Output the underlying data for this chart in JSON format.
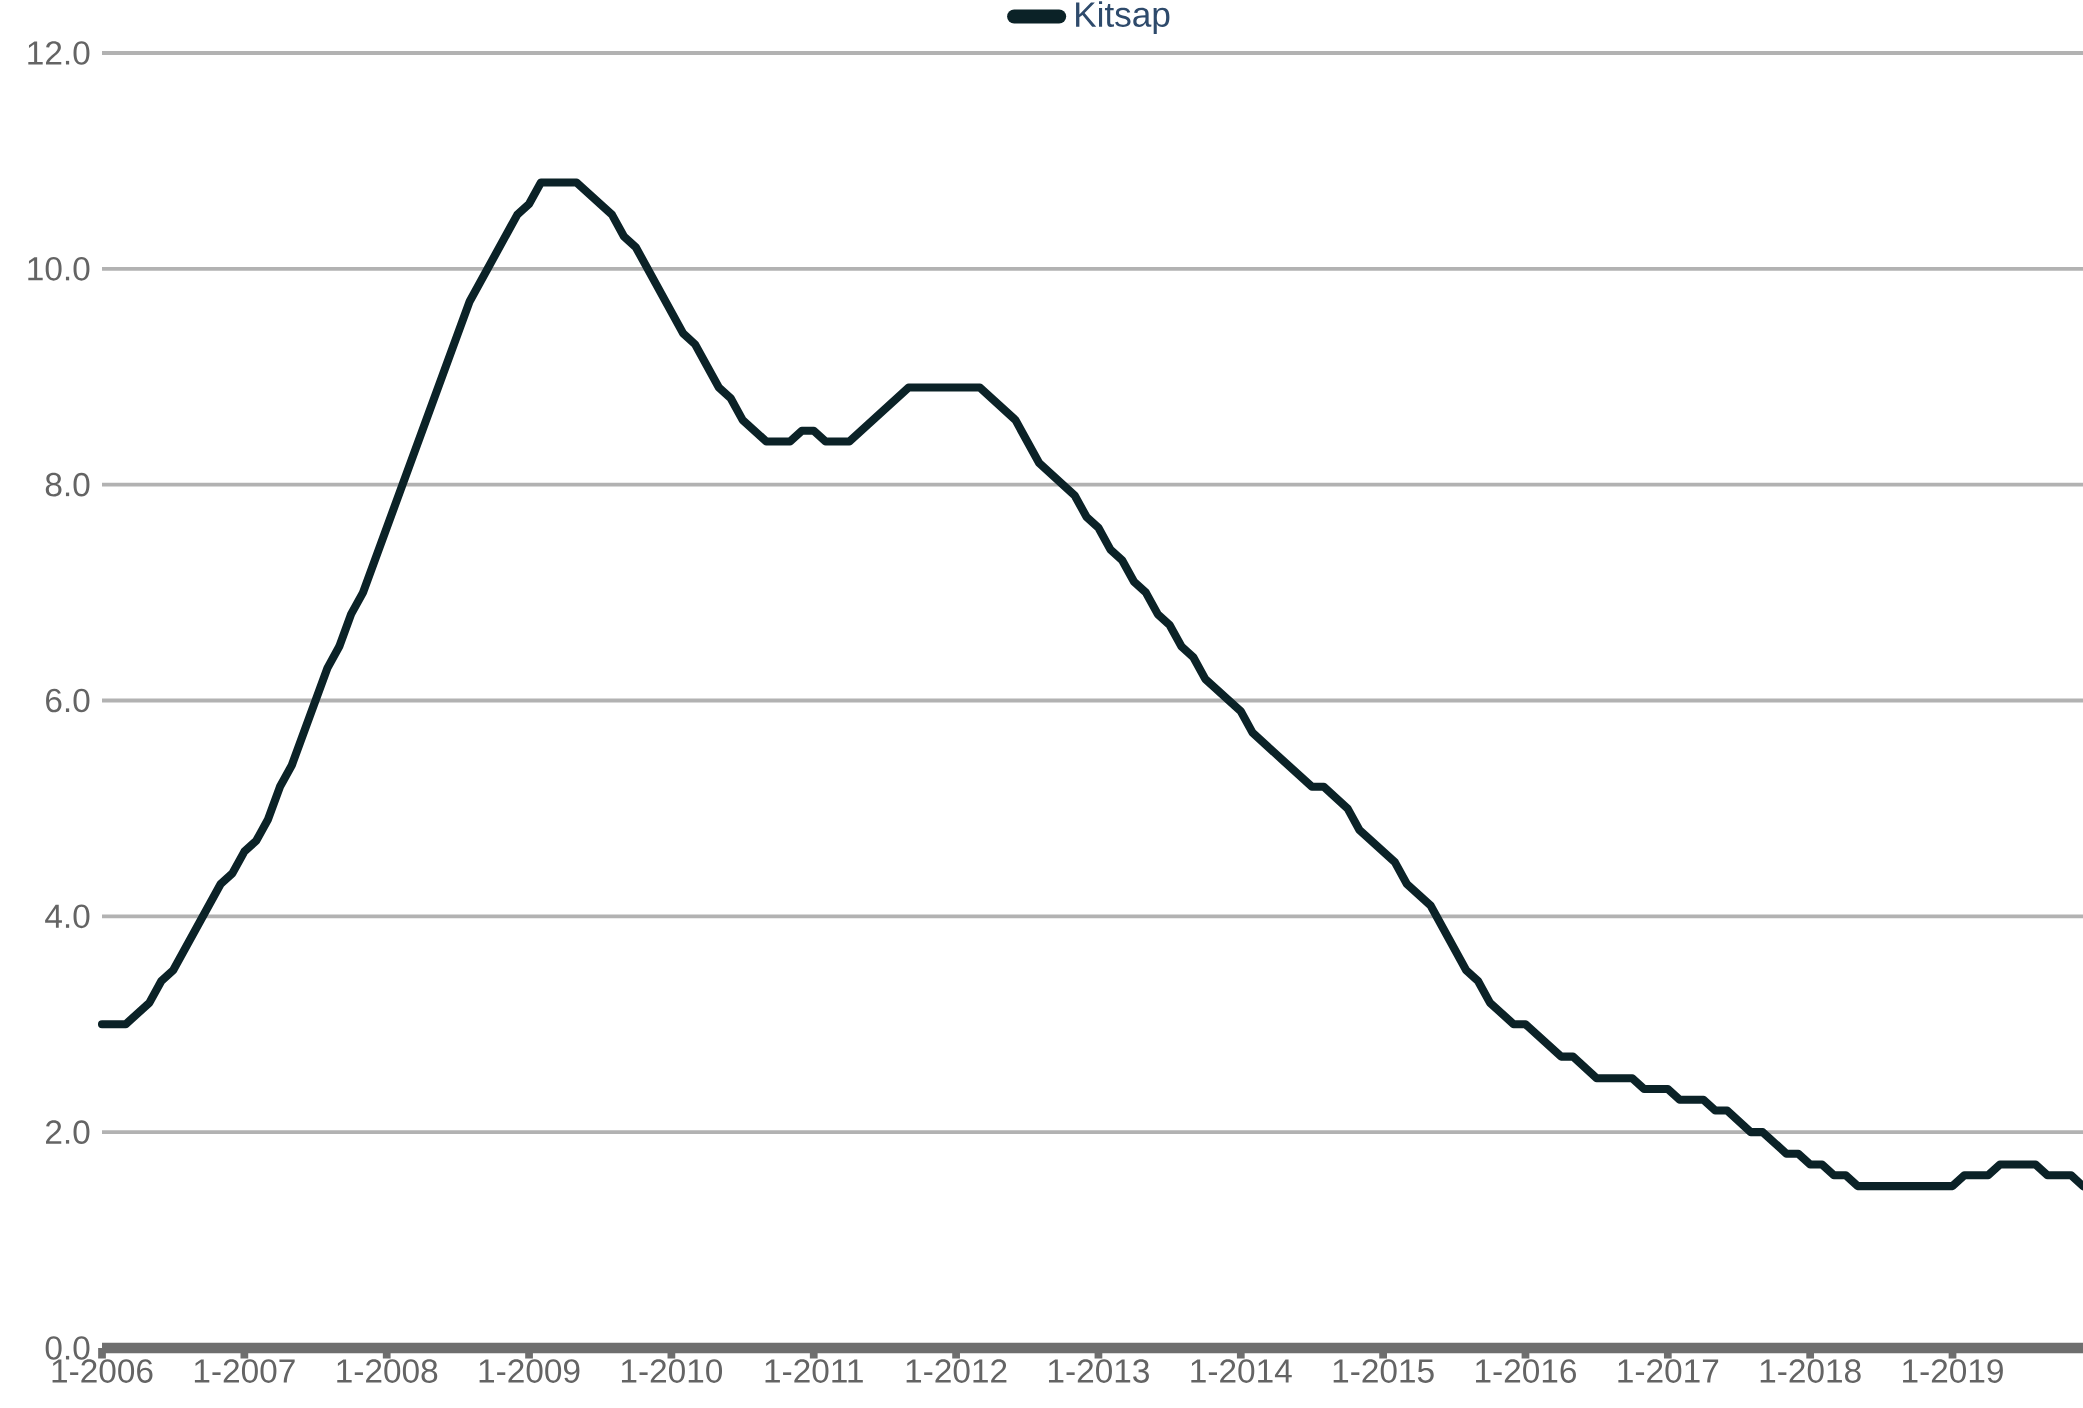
{
  "chart_data": {
    "type": "line",
    "x": [
      "2006-01",
      "2006-03",
      "2006-05",
      "2006-06",
      "2006-07",
      "2006-11",
      "2006-12",
      "2007-01",
      "2007-02",
      "2007-03",
      "2007-04",
      "2007-05",
      "2007-08",
      "2007-09",
      "2007-10",
      "2007-11",
      "2008-08",
      "2008-12",
      "2009-01",
      "2009-02",
      "2009-05",
      "2009-08",
      "2009-09",
      "2009-10",
      "2010-02",
      "2010-03",
      "2010-05",
      "2010-06",
      "2010-07",
      "2010-09",
      "2010-11",
      "2010-12",
      "2011-01",
      "2011-02",
      "2011-04",
      "2011-09",
      "2012-03",
      "2012-06",
      "2012-08",
      "2012-11",
      "2012-12",
      "2013-01",
      "2013-02",
      "2013-03",
      "2013-04",
      "2013-05",
      "2013-06",
      "2013-07",
      "2013-08",
      "2013-09",
      "2013-10",
      "2014-01",
      "2014-02",
      "2014-07",
      "2014-08",
      "2014-10",
      "2014-11",
      "2015-02",
      "2015-03",
      "2015-05",
      "2015-08",
      "2015-09",
      "2015-10",
      "2015-12",
      "2016-01",
      "2016-04",
      "2016-05",
      "2016-07",
      "2016-10",
      "2016-11",
      "2017-01",
      "2017-02",
      "2017-04",
      "2017-05",
      "2017-06",
      "2017-08",
      "2017-09",
      "2017-11",
      "2017-12",
      "2018-01",
      "2018-02",
      "2018-03",
      "2018-04",
      "2018-05",
      "2019-01",
      "2019-02",
      "2019-04",
      "2019-05",
      "2019-08",
      "2019-09",
      "2019-11",
      "2019-12"
    ],
    "series": [
      {
        "name": "Kitsap",
        "color": "#0b2227",
        "values": [
          3.0,
          3.0,
          3.2,
          3.4,
          3.5,
          4.3,
          4.4,
          4.6,
          4.7,
          4.9,
          5.2,
          5.4,
          6.3,
          6.5,
          6.8,
          7.0,
          9.7,
          10.5,
          10.6,
          10.8,
          10.8,
          10.5,
          10.3,
          10.2,
          9.4,
          9.3,
          8.9,
          8.8,
          8.6,
          8.4,
          8.4,
          8.5,
          8.5,
          8.4,
          8.4,
          8.9,
          8.9,
          8.6,
          8.2,
          7.9,
          7.7,
          7.6,
          7.4,
          7.3,
          7.1,
          7.0,
          6.8,
          6.7,
          6.5,
          6.4,
          6.2,
          5.9,
          5.7,
          5.2,
          5.2,
          5.0,
          4.8,
          4.5,
          4.3,
          4.1,
          3.5,
          3.4,
          3.2,
          3.0,
          3.0,
          2.7,
          2.7,
          2.5,
          2.5,
          2.4,
          2.4,
          2.3,
          2.3,
          2.2,
          2.2,
          2.0,
          2.0,
          1.8,
          1.8,
          1.7,
          1.7,
          1.6,
          1.6,
          1.5,
          1.5,
          1.6,
          1.6,
          1.7,
          1.7,
          1.6,
          1.6,
          1.5
        ]
      }
    ],
    "xlim": [
      "2006-01",
      "2019-12"
    ],
    "xticks": [
      {
        "value": "2006-01",
        "label": "1-2006"
      },
      {
        "value": "2007-01",
        "label": "1-2007"
      },
      {
        "value": "2008-01",
        "label": "1-2008"
      },
      {
        "value": "2009-01",
        "label": "1-2009"
      },
      {
        "value": "2010-01",
        "label": "1-2010"
      },
      {
        "value": "2011-01",
        "label": "1-2011"
      },
      {
        "value": "2012-01",
        "label": "1-2012"
      },
      {
        "value": "2013-01",
        "label": "1-2013"
      },
      {
        "value": "2014-01",
        "label": "1-2014"
      },
      {
        "value": "2015-01",
        "label": "1-2015"
      },
      {
        "value": "2016-01",
        "label": "1-2016"
      },
      {
        "value": "2017-01",
        "label": "1-2017"
      },
      {
        "value": "2018-01",
        "label": "1-2018"
      },
      {
        "value": "2019-01",
        "label": "1-2019"
      }
    ],
    "ylim": [
      0,
      12
    ],
    "yticks": [
      {
        "value": 0,
        "label": "0.0"
      },
      {
        "value": 2,
        "label": "2.0"
      },
      {
        "value": 4,
        "label": "4.0"
      },
      {
        "value": 6,
        "label": "6.0"
      },
      {
        "value": 8,
        "label": "8.0"
      },
      {
        "value": 10,
        "label": "10.0"
      },
      {
        "value": 12,
        "label": "12.0"
      }
    ],
    "grid": "y",
    "legend": "top",
    "marker": "none",
    "line_style": "solid"
  }
}
